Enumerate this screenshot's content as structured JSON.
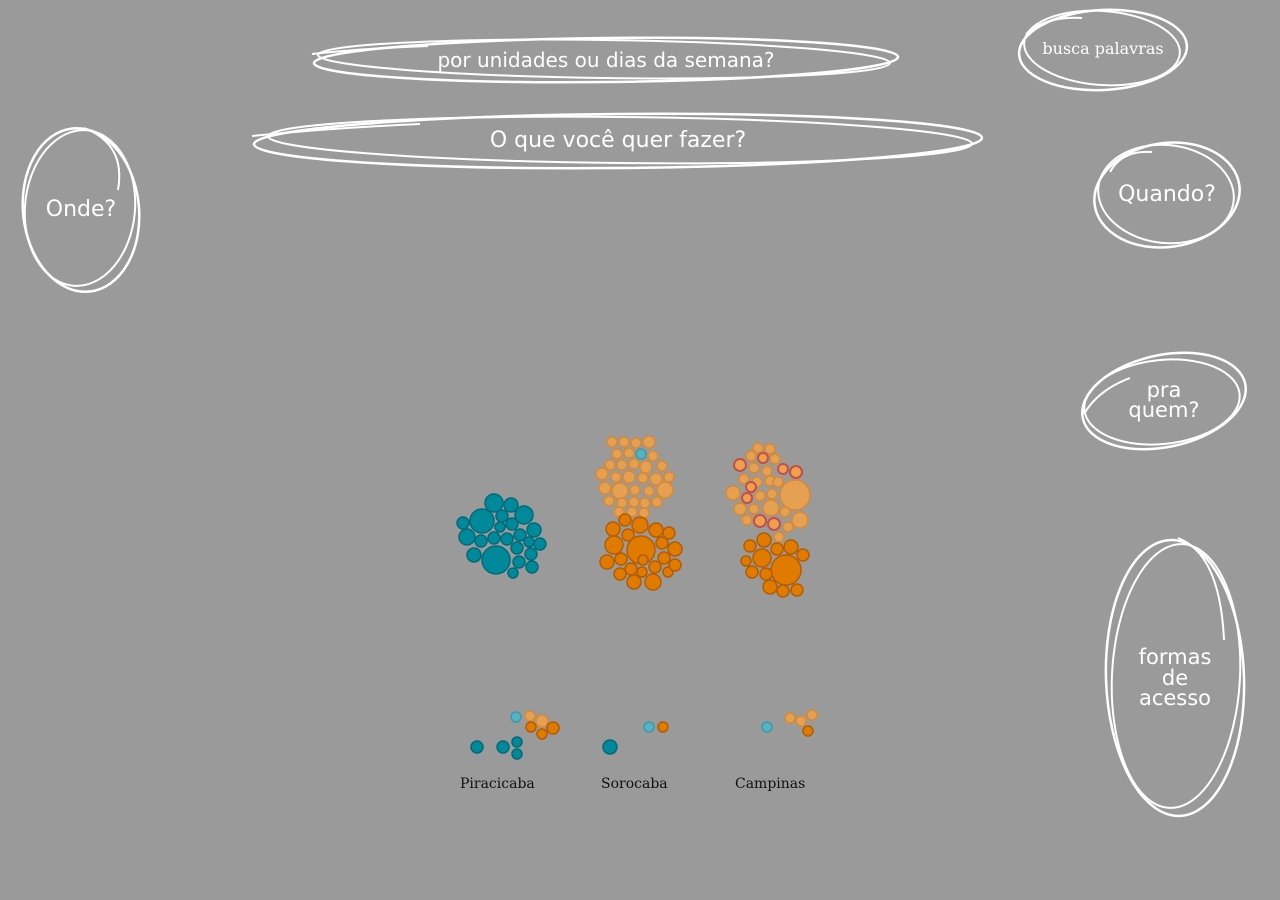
{
  "nav": {
    "unidades": "por unidades ou dias da semana?",
    "fazer": "O que você quer fazer?",
    "busca": "busca palavras",
    "onde": "Onde?",
    "quando": "Quando?",
    "pra_quem": "pra\nquem?",
    "formas": "formas\nde\nacesso"
  },
  "colors": {
    "teal": "#00899b",
    "teal_light": "#4fb6c6",
    "orange": "#e07b00",
    "orange_light": "#eea14a",
    "red": "#c0504d",
    "outline": "#ffffff",
    "background": "#9a9a9a"
  },
  "chart_data": {
    "type": "bubble-cluster",
    "categories": [
      "Piracicaba",
      "Sorocaba",
      "Campinas"
    ]
  }
}
